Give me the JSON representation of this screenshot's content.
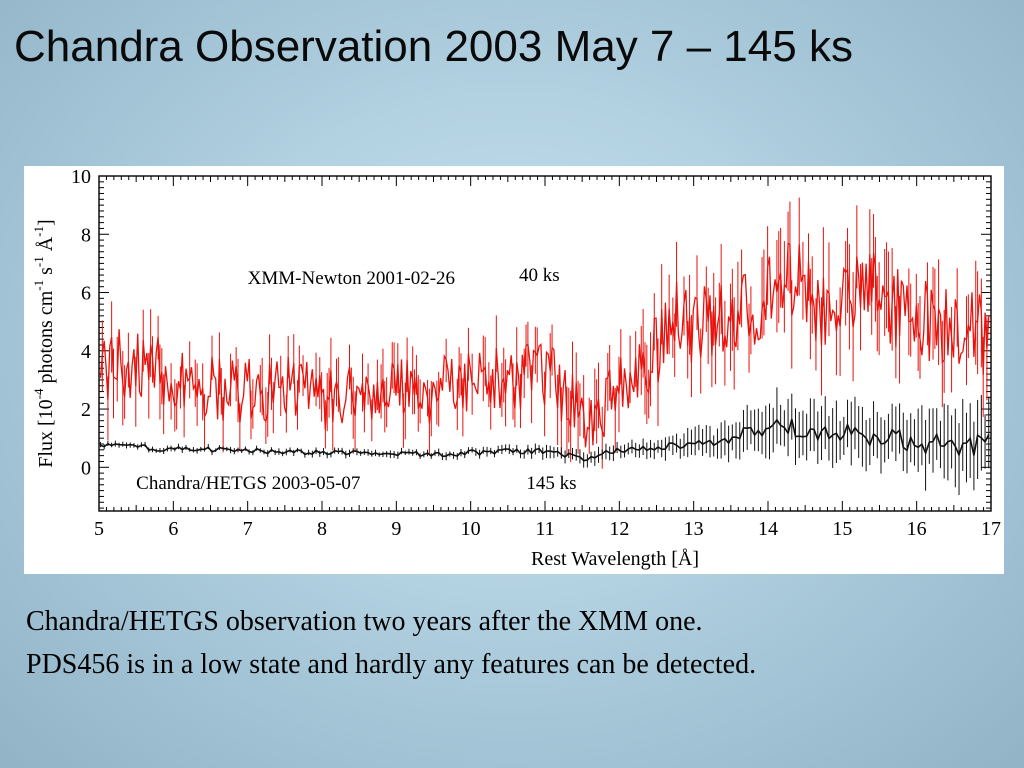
{
  "slide": {
    "title": "Chandra Observation 2003 May 7 – 145 ks",
    "caption_lines": [
      "Chandra/HETGS observation two years after the XMM one.",
      "PDS456 is in a low state and hardly any features can be detected."
    ]
  },
  "colors": {
    "xmm": "#e8120c",
    "chandra": "#111111",
    "axis": "#000000"
  },
  "chart_data": {
    "type": "line",
    "xlabel": "Rest Wavelength [Å]",
    "ylabel": "Flux [10-4 photons cm-1 s-1 Å-1]",
    "ylabel_parts": {
      "prefix": "Flux [10",
      "exp1": "-4",
      "mid1": " photons cm",
      "exp2": "-1",
      "mid2": " s",
      "exp3": "-1",
      "mid3": " Å",
      "exp4": "-1",
      "suffix": "]"
    },
    "xlim": [
      5,
      17
    ],
    "ylim": [
      -1.5,
      10
    ],
    "xticks": [
      5,
      6,
      7,
      8,
      9,
      10,
      11,
      12,
      13,
      14,
      15,
      16,
      17
    ],
    "yticks": [
      0,
      2,
      4,
      6,
      8,
      10
    ],
    "annotations": [
      {
        "text": "XMM-Newton 2001-02-26",
        "x": 7.0,
        "y": 6.3
      },
      {
        "text": "40 ks",
        "x": 10.65,
        "y": 6.4
      },
      {
        "text": "Chandra/HETGS 2003-05-07",
        "x": 5.5,
        "y": -0.75
      },
      {
        "text": "145 ks",
        "x": 10.75,
        "y": -0.75
      }
    ],
    "series": [
      {
        "name": "XMM-Newton 2001-02-26",
        "color": "#e8120c",
        "x": [
          5.0,
          5.5,
          6.0,
          6.5,
          7.0,
          7.5,
          8.0,
          8.5,
          9.0,
          9.5,
          10.0,
          10.5,
          11.0,
          11.3,
          11.5,
          12.0,
          12.5,
          12.8,
          13.0,
          13.5,
          14.0,
          14.4,
          14.6,
          15.0,
          15.4,
          15.6,
          16.0,
          16.5,
          16.9
        ],
        "y": [
          3.4,
          3.6,
          3.2,
          2.8,
          2.6,
          2.8,
          2.4,
          2.6,
          2.8,
          2.6,
          3.0,
          3.1,
          3.2,
          2.4,
          1.6,
          2.7,
          4.0,
          5.2,
          4.8,
          5.0,
          5.8,
          6.5,
          5.4,
          5.7,
          6.2,
          5.6,
          5.1,
          5.0,
          4.6
        ],
        "errors": [
          1.3,
          1.2,
          1.1,
          1.1,
          1.0,
          1.0,
          1.0,
          1.0,
          1.0,
          1.0,
          1.0,
          1.0,
          1.1,
          1.1,
          1.1,
          1.2,
          1.3,
          1.4,
          1.4,
          1.5,
          1.6,
          1.6,
          1.6,
          1.6,
          1.6,
          1.6,
          1.6,
          1.7,
          1.8
        ]
      },
      {
        "name": "Chandra/HETGS 2003-05-07",
        "color": "#111111",
        "x": [
          5.0,
          5.5,
          6.0,
          6.5,
          7.0,
          7.5,
          8.0,
          8.5,
          9.0,
          9.5,
          10.0,
          10.5,
          11.0,
          11.5,
          12.0,
          12.5,
          13.0,
          13.5,
          14.0,
          14.3,
          14.5,
          15.0,
          15.5,
          16.0,
          16.5,
          16.9
        ],
        "y": [
          0.75,
          0.7,
          0.62,
          0.6,
          0.58,
          0.55,
          0.5,
          0.5,
          0.45,
          0.45,
          0.5,
          0.55,
          0.55,
          0.3,
          0.6,
          0.7,
          0.8,
          1.0,
          1.3,
          1.4,
          1.0,
          1.2,
          1.0,
          0.9,
          0.7,
          0.8
        ],
        "errors": [
          0.1,
          0.1,
          0.1,
          0.1,
          0.1,
          0.1,
          0.12,
          0.12,
          0.12,
          0.12,
          0.15,
          0.15,
          0.2,
          0.25,
          0.25,
          0.3,
          0.5,
          0.6,
          0.9,
          1.0,
          0.9,
          1.0,
          1.0,
          1.1,
          1.3,
          1.5
        ]
      }
    ]
  }
}
